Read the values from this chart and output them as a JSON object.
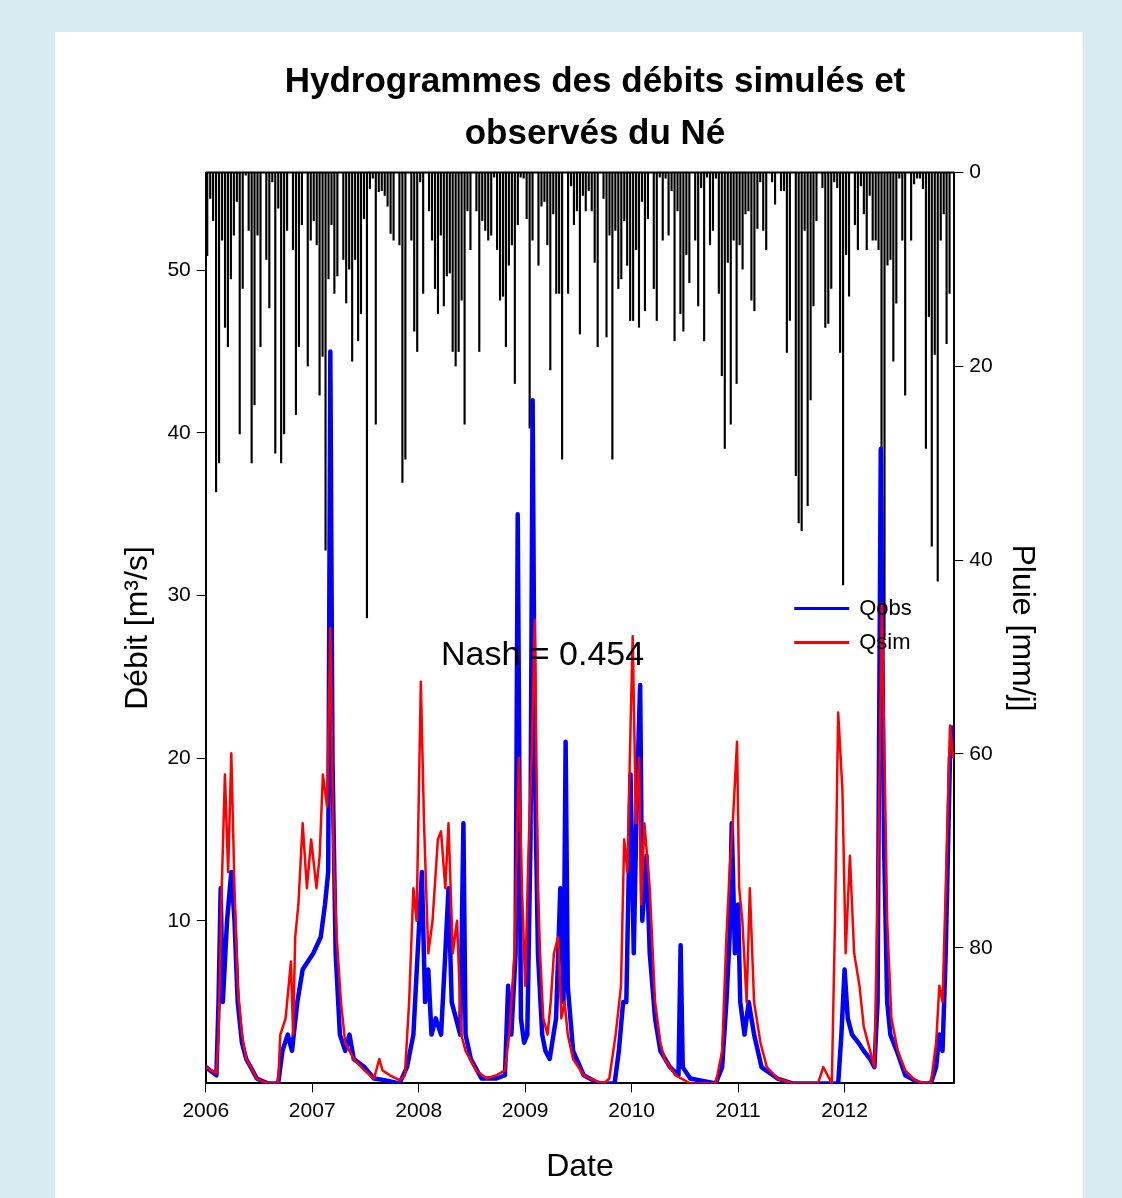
{
  "chart_data": {
    "type": "line",
    "title": "Hydrogrammes des débits simulés et observés du Né",
    "xlabel": "Date",
    "ylabel": "Débit [m³/s]",
    "y2label": "Pluie [mm/j]",
    "xlim": [
      2006,
      2013.03
    ],
    "xticks": [
      2006,
      2007,
      2008,
      2009,
      2010,
      2011,
      2012
    ],
    "ylim": [
      0,
      56
    ],
    "yticks": [
      10,
      20,
      30,
      40,
      50
    ],
    "y2lim": [
      94,
      0
    ],
    "y2ticks": [
      0,
      20,
      40,
      60,
      80
    ],
    "legend": "right",
    "annotations": [
      "Nash = 0.454"
    ],
    "series": [
      {
        "type": "bar",
        "axis": "y2",
        "color": "#000000",
        "x": [
          2006.014,
          2006.042,
          2006.069,
          2006.097,
          2006.125,
          2006.153,
          2006.181,
          2006.208,
          2006.236,
          2006.264,
          2006.292,
          2006.319,
          2006.347,
          2006.375,
          2006.403,
          2006.431,
          2006.458,
          2006.486,
          2006.514,
          2006.542,
          2006.569,
          2006.597,
          2006.625,
          2006.653,
          2006.681,
          2006.708,
          2006.736,
          2006.764,
          2006.792,
          2006.819,
          2006.847,
          2006.875,
          2006.903,
          2006.931,
          2006.958,
          2006.986,
          2007.014,
          2007.042,
          2007.069,
          2007.097,
          2007.125,
          2007.153,
          2007.181,
          2007.208,
          2007.236,
          2007.264,
          2007.292,
          2007.319,
          2007.347,
          2007.375,
          2007.403,
          2007.431,
          2007.458,
          2007.486,
          2007.514,
          2007.542,
          2007.569,
          2007.597,
          2007.625,
          2007.653,
          2007.681,
          2007.708,
          2007.736,
          2007.764,
          2007.792,
          2007.819,
          2007.847,
          2007.875,
          2007.903,
          2007.931,
          2007.958,
          2007.986,
          2008.014,
          2008.042,
          2008.069,
          2008.097,
          2008.125,
          2008.153,
          2008.181,
          2008.208,
          2008.236,
          2008.264,
          2008.292,
          2008.319,
          2008.347,
          2008.375,
          2008.403,
          2008.431,
          2008.458,
          2008.486,
          2008.514,
          2008.542,
          2008.569,
          2008.597,
          2008.625,
          2008.653,
          2008.681,
          2008.708,
          2008.736,
          2008.764,
          2008.792,
          2008.819,
          2008.847,
          2008.875,
          2008.903,
          2008.931,
          2008.958,
          2008.986,
          2009.014,
          2009.042,
          2009.069,
          2009.097,
          2009.125,
          2009.153,
          2009.181,
          2009.208,
          2009.236,
          2009.264,
          2009.292,
          2009.319,
          2009.347,
          2009.375,
          2009.403,
          2009.431,
          2009.458,
          2009.486,
          2009.514,
          2009.542,
          2009.569,
          2009.597,
          2009.625,
          2009.653,
          2009.681,
          2009.708,
          2009.736,
          2009.764,
          2009.792,
          2009.819,
          2009.847,
          2009.875,
          2009.903,
          2009.931,
          2009.958,
          2009.986,
          2010.014,
          2010.042,
          2010.069,
          2010.097,
          2010.125,
          2010.153,
          2010.181,
          2010.208,
          2010.236,
          2010.264,
          2010.292,
          2010.319,
          2010.347,
          2010.375,
          2010.403,
          2010.431,
          2010.458,
          2010.486,
          2010.514,
          2010.542,
          2010.569,
          2010.597,
          2010.625,
          2010.653,
          2010.681,
          2010.708,
          2010.736,
          2010.764,
          2010.792,
          2010.819,
          2010.847,
          2010.875,
          2010.903,
          2010.931,
          2010.958,
          2010.986,
          2011.014,
          2011.042,
          2011.069,
          2011.097,
          2011.125,
          2011.153,
          2011.181,
          2011.208,
          2011.236,
          2011.264,
          2011.292,
          2011.319,
          2011.347,
          2011.375,
          2011.403,
          2011.431,
          2011.458,
          2011.486,
          2011.514,
          2011.542,
          2011.569,
          2011.597,
          2011.625,
          2011.653,
          2011.681,
          2011.708,
          2011.736,
          2011.764,
          2011.792,
          2011.819,
          2011.847,
          2011.875,
          2011.903,
          2011.931,
          2011.958,
          2011.986,
          2012.014,
          2012.042,
          2012.069,
          2012.097,
          2012.125,
          2012.153,
          2012.181,
          2012.208,
          2012.236,
          2012.264,
          2012.292,
          2012.319,
          2012.347,
          2012.375,
          2012.403,
          2012.431,
          2012.458,
          2012.486,
          2012.514,
          2012.542,
          2012.569,
          2012.597,
          2012.625,
          2012.653,
          2012.681,
          2012.708,
          2012.736,
          2012.764,
          2012.792,
          2012.819,
          2012.847,
          2012.875,
          2012.903,
          2012.931,
          2012.958,
          2012.986
        ],
        "values": [
          8.6,
          2.7,
          5,
          33,
          30,
          7,
          16,
          18,
          11,
          6.5,
          3,
          27,
          12,
          0.3,
          6,
          30,
          24,
          6.5,
          18,
          0,
          9,
          14,
          1,
          29,
          3.7,
          30,
          27,
          6,
          0,
          8,
          25,
          18,
          5.4,
          0,
          20,
          7,
          5,
          7.5,
          23,
          19,
          39,
          11,
          5.4,
          12.5,
          10.7,
          0,
          9,
          13.5,
          10,
          19.5,
          9,
          17.4,
          14.6,
          4.8,
          46,
          1.7,
          0.6,
          26,
          2,
          1.9,
          2.4,
          3.5,
          6.3,
          7,
          0,
          7.5,
          32,
          29.6,
          0,
          7,
          16.4,
          18.5,
          1,
          12.5,
          0,
          4,
          7,
          12,
          14.6,
          6.5,
          13.8,
          10.7,
          10.4,
          18.5,
          20,
          18.5,
          13.2,
          26,
          4,
          8,
          0,
          4,
          18.5,
          5,
          6,
          7,
          6.5,
          0.5,
          8,
          13.2,
          12.8,
          18,
          9.6,
          7.5,
          21.8,
          5.4,
          0.5,
          0.6,
          4.8,
          26.4,
          7,
          0,
          9.6,
          3.5,
          3,
          7.5,
          20.4,
          4.3,
          12.5,
          12.5,
          29.6,
          0,
          12.5,
          1.4,
          5.4,
          4,
          16.7,
          2.4,
          4,
          1.9,
          4,
          9.3,
          18,
          0,
          2.7,
          17,
          6.5,
          29.6,
          6,
          12,
          11,
          5,
          9.6,
          15.3,
          15.3,
          8,
          16,
          3,
          14.3,
          4.8,
          0,
          12,
          15.3,
          0.5,
          7,
          0.6,
          6.5,
          1.9,
          17.4,
          4,
          14.6,
          16.4,
          8.5,
          11.4,
          0,
          7,
          13.8,
          1.6,
          17.4,
          0.5,
          7.5,
          6,
          0.6,
          12.5,
          21,
          28.5,
          9.3,
          26,
          7,
          21.8,
          7.5,
          10,
          4.3,
          4,
          13.2,
          14.3,
          5.8,
          1,
          6,
          8,
          0,
          1,
          3.3,
          0,
          1.9,
          1.9,
          18.6,
          15.3,
          0,
          31.3,
          36.2,
          37,
          6,
          34.4,
          23.5,
          13.8,
          5,
          0,
          1.6,
          16,
          15.6,
          12,
          1,
          1.6,
          18.6,
          42.6,
          8.5,
          12.8,
          0,
          5.4,
          8,
          1.4,
          4.3,
          8,
          2.4,
          7,
          7,
          8,
          28.5,
          48,
          9.6,
          9,
          19.5,
          13.5,
          0.6,
          7,
          23,
          0,
          7,
          1.2,
          0.6,
          0.6,
          1.7,
          28.5,
          14.9,
          38.6,
          18.8,
          42.2,
          7,
          4.3,
          17.7,
          12.5
        ]
      },
      {
        "name": "Qobs",
        "color": "#0000ff",
        "x": [
          2006.0,
          2006.1,
          2006.12,
          2006.14,
          2006.16,
          2006.2,
          2006.24,
          2006.27,
          2006.3,
          2006.34,
          2006.38,
          2006.48,
          2006.58,
          2006.68,
          2006.72,
          2006.77,
          2006.81,
          2006.86,
          2006.91,
          2007.01,
          2007.08,
          2007.12,
          2007.15,
          2007.17,
          2007.19,
          2007.22,
          2007.26,
          2007.31,
          2007.35,
          2007.39,
          2007.49,
          2007.58,
          2007.68,
          2007.82,
          2007.89,
          2007.95,
          2007.99,
          2008.03,
          2008.06,
          2008.09,
          2008.12,
          2008.16,
          2008.21,
          2008.25,
          2008.28,
          2008.31,
          2008.35,
          2008.39,
          2008.42,
          2008.44,
          2008.49,
          2008.59,
          2008.73,
          2008.81,
          2008.84,
          2008.87,
          2008.91,
          2008.93,
          2008.96,
          2008.99,
          2009.02,
          2009.05,
          2009.07,
          2009.09,
          2009.12,
          2009.16,
          2009.19,
          2009.23,
          2009.29,
          2009.33,
          2009.36,
          2009.38,
          2009.4,
          2009.45,
          2009.55,
          2009.69,
          2009.84,
          2009.88,
          2009.92,
          2009.95,
          2009.99,
          2010.02,
          2010.05,
          2010.08,
          2010.1,
          2010.14,
          2010.17,
          2010.22,
          2010.27,
          2010.36,
          2010.44,
          2010.46,
          2010.48,
          2010.55,
          2010.79,
          2010.85,
          2010.89,
          2010.92,
          2010.94,
          2010.97,
          2011.0,
          2011.02,
          2011.06,
          2011.1,
          2011.15,
          2011.22,
          2011.37,
          2011.51,
          2011.94,
          2011.97,
          2012.0,
          2012.03,
          2012.07,
          2012.13,
          2012.18,
          2012.24,
          2012.28,
          2012.31,
          2012.34,
          2012.37,
          2012.4,
          2012.43,
          2012.49,
          2012.57,
          2012.71,
          2012.81,
          2012.86,
          2012.89,
          2012.92,
          2012.95,
          2012.99,
          2013.02
        ],
        "values": [
          1,
          0.5,
          5,
          12,
          5,
          10,
          13,
          10,
          5,
          2.5,
          1.5,
          0.3,
          0,
          0,
          2,
          3,
          2,
          5,
          7,
          8,
          9,
          11,
          13,
          45,
          20,
          8,
          3,
          2,
          3,
          1.5,
          1,
          0.3,
          0.2,
          0,
          1,
          3,
          8,
          13,
          5,
          7,
          3,
          4,
          3,
          8,
          12,
          5,
          4,
          3,
          16,
          3,
          1.5,
          0.3,
          0.3,
          0.5,
          6,
          3,
          8,
          35,
          4,
          2.5,
          3,
          15,
          42,
          20,
          8,
          3,
          2,
          1.5,
          4,
          12,
          5,
          21,
          6,
          2,
          0.5,
          0,
          0,
          2,
          5,
          5,
          19,
          8,
          18,
          24.5,
          10,
          14,
          8,
          4,
          2,
          1,
          0.5,
          8.5,
          1,
          0.3,
          0,
          1,
          5,
          9,
          16,
          8,
          11,
          5,
          3,
          5,
          3,
          1,
          0.3,
          0,
          0,
          3,
          7,
          4,
          3,
          2.5,
          2,
          1.5,
          1,
          5,
          39,
          15,
          5,
          3,
          2,
          0.5,
          0,
          0,
          1,
          3,
          2,
          8,
          20,
          22
        ]
      },
      {
        "name": "Qsim",
        "color": "#ff0000",
        "x": [
          2006.0,
          2006.1,
          2006.12,
          2006.15,
          2006.18,
          2006.21,
          2006.24,
          2006.27,
          2006.3,
          2006.34,
          2006.38,
          2006.48,
          2006.58,
          2006.68,
          2006.7,
          2006.75,
          2006.8,
          2006.82,
          2006.84,
          2006.87,
          2006.91,
          2006.95,
          2006.99,
          2007.04,
          2007.07,
          2007.1,
          2007.14,
          2007.17,
          2007.2,
          2007.23,
          2007.27,
          2007.31,
          2007.39,
          2007.49,
          2007.58,
          2007.63,
          2007.66,
          2007.73,
          2007.82,
          2007.87,
          2007.91,
          2007.95,
          2007.98,
          2008.02,
          2008.05,
          2008.09,
          2008.13,
          2008.18,
          2008.21,
          2008.25,
          2008.28,
          2008.32,
          2008.36,
          2008.4,
          2008.44,
          2008.54,
          2008.64,
          2008.73,
          2008.81,
          2008.85,
          2008.9,
          2008.92,
          2008.94,
          2008.97,
          2009.0,
          2009.03,
          2009.06,
          2009.09,
          2009.12,
          2009.14,
          2009.17,
          2009.21,
          2009.24,
          2009.27,
          2009.31,
          2009.34,
          2009.37,
          2009.4,
          2009.45,
          2009.55,
          2009.64,
          2009.74,
          2009.79,
          2009.85,
          2009.9,
          2009.93,
          2009.96,
          2009.99,
          2010.01,
          2010.04,
          2010.07,
          2010.09,
          2010.12,
          2010.17,
          2010.22,
          2010.27,
          2010.31,
          2010.41,
          2010.55,
          2010.79,
          2010.85,
          2010.89,
          2010.92,
          2010.95,
          2010.99,
          2011.01,
          2011.04,
          2011.08,
          2011.11,
          2011.15,
          2011.21,
          2011.27,
          2011.37,
          2011.51,
          2011.75,
          2011.8,
          2011.84,
          2011.88,
          2011.91,
          2011.94,
          2011.98,
          2012.01,
          2012.05,
          2012.09,
          2012.14,
          2012.18,
          2012.24,
          2012.28,
          2012.32,
          2012.35,
          2012.38,
          2012.4,
          2012.44,
          2012.5,
          2012.57,
          2012.66,
          2012.76,
          2012.81,
          2012.86,
          2012.89,
          2012.92,
          2012.95,
          2012.99,
          2013.02
        ],
        "values": [
          1,
          0.6,
          3,
          12,
          19,
          13,
          20.3,
          12,
          6,
          3,
          1.5,
          0.3,
          0,
          0,
          3,
          4,
          7.5,
          3,
          9,
          11,
          16,
          12,
          15,
          12,
          14,
          19,
          17,
          28,
          14,
          9,
          5,
          2.5,
          1.5,
          0.8,
          0.3,
          1.5,
          0.8,
          0.5,
          0.2,
          0.5,
          5,
          12,
          10,
          24.7,
          16,
          8,
          10,
          15,
          15.5,
          12,
          16,
          8,
          10,
          3,
          2,
          0.8,
          0.3,
          0.5,
          0.8,
          3,
          8,
          14,
          20,
          12,
          6,
          14,
          20,
          28.5,
          12,
          8,
          4,
          3,
          5,
          8,
          9,
          4,
          5,
          3,
          1.5,
          0.5,
          0.2,
          0,
          0.3,
          3,
          6,
          15,
          13,
          22,
          27.5,
          16,
          20,
          11,
          16,
          12,
          5,
          2.5,
          1.5,
          0.5,
          0,
          0,
          2,
          9,
          13,
          16,
          21,
          12,
          10,
          5,
          12,
          5,
          2.5,
          1,
          0.3,
          0,
          0,
          1,
          0.5,
          0,
          10,
          22.8,
          18,
          8,
          14,
          8,
          6,
          3.5,
          2,
          1,
          15,
          29.5,
          18,
          10,
          4,
          2,
          0.8,
          0.2,
          0,
          0,
          2.5,
          6,
          5,
          12,
          22,
          20
        ]
      }
    ]
  }
}
